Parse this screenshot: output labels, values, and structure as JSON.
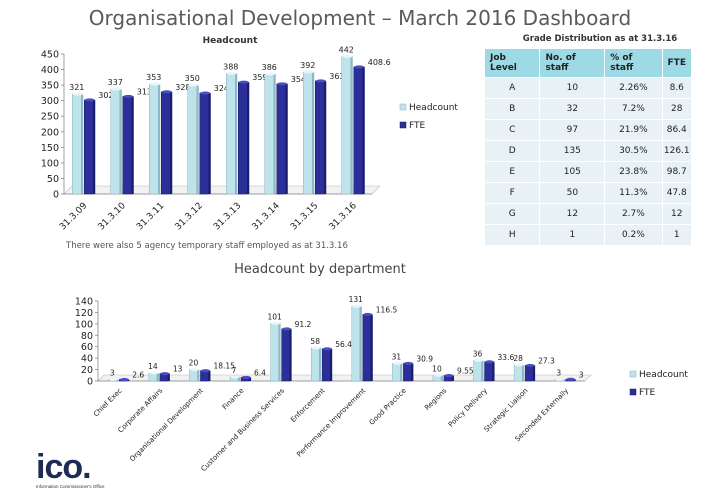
{
  "page": {
    "title": "Organisational Development – March 2016 Dashboard"
  },
  "note": "There were also 5 agency temporary staff employed as at 31.3.16",
  "grade": {
    "title": "Grade Distribution as at 31.3.16",
    "headers": [
      "Job Level",
      "No. of staff",
      "% of staff",
      "FTE"
    ],
    "rows": [
      [
        "A",
        "10",
        "2.26%",
        "8.6"
      ],
      [
        "B",
        "32",
        "7.2%",
        "28"
      ],
      [
        "C",
        "97",
        "21.9%",
        "86.4"
      ],
      [
        "D",
        "135",
        "30.5%",
        "126.1"
      ],
      [
        "E",
        "105",
        "23.8%",
        "98.7"
      ],
      [
        "F",
        "50",
        "11.3%",
        "47.8"
      ],
      [
        "G",
        "12",
        "2.7%",
        "12"
      ],
      [
        "H",
        "1",
        "0.2%",
        "1"
      ]
    ]
  },
  "logo": {
    "text": "ico.",
    "subtitle": "Information Commissioner's Office"
  },
  "colors": {
    "headcount": "#bfe3ea",
    "fte": "#2b2f9a"
  },
  "chart_data": [
    {
      "type": "bar",
      "title": "Headcount",
      "categories": [
        "31.3.09",
        "31.3.10",
        "31.3.11",
        "31.3.12",
        "31.3.13",
        "31.3.14",
        "31.3.15",
        "31.3.16"
      ],
      "series": [
        {
          "name": "Headcount",
          "values": [
            321,
            337,
            353,
            350,
            388,
            386,
            392,
            442
          ]
        },
        {
          "name": "FTE",
          "values": [
            302.4,
            313.8,
            328.5,
            324.6,
            359.6,
            354,
            363.5,
            408.6
          ]
        }
      ],
      "ylim": [
        0,
        450
      ],
      "yticks": [
        0,
        50,
        100,
        150,
        200,
        250,
        300,
        350,
        400,
        450
      ],
      "legend": "right",
      "grid": false
    },
    {
      "type": "bar",
      "title": "Headcount by department",
      "categories": [
        "Chief Exec",
        "Corporate Affairs",
        "Organisational Development",
        "Finance",
        "Customer and Business Services",
        "Enforcement",
        "Performance Improvement",
        "Good Practice",
        "Regions",
        "Policy Delivery",
        "Strategic Liaison",
        "Seconded Externally"
      ],
      "series": [
        {
          "name": "Headcount",
          "values": [
            3,
            14,
            20,
            7,
            101,
            58,
            131,
            31,
            10,
            36,
            28,
            3
          ]
        },
        {
          "name": "FTE",
          "values": [
            2.6,
            13,
            18.15,
            6.4,
            91.2,
            56.4,
            116.5,
            30.9,
            9.55,
            33.6,
            27.3,
            3
          ]
        }
      ],
      "ylim": [
        0,
        140
      ],
      "yticks": [
        0,
        20,
        40,
        60,
        80,
        100,
        120,
        140
      ],
      "legend": "right",
      "grid": false
    }
  ]
}
